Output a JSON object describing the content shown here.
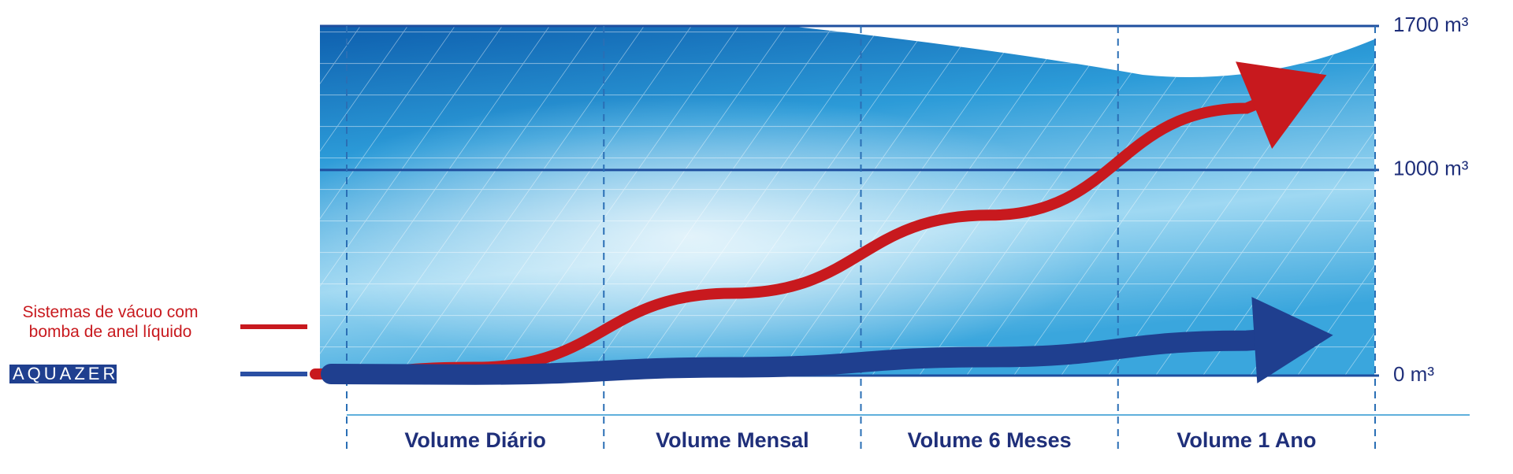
{
  "chart_data": {
    "type": "line",
    "categories": [
      "Volume Diário",
      "Volume Mensal",
      "Volume 6 Meses",
      "Volume 1 Ano"
    ],
    "series": [
      {
        "name": "Sistemas de vácuo com bomba de anel líquido",
        "color": "#c8191e",
        "values": [
          40,
          400,
          780,
          1300
        ]
      },
      {
        "name": "AQUAZERO®",
        "color": "#1f3f8f",
        "values": [
          5,
          40,
          90,
          170
        ]
      }
    ],
    "ylim": [
      0,
      1700
    ],
    "yticks": [
      {
        "value": 0,
        "label": "0 m³"
      },
      {
        "value": 1000,
        "label": "1000 m³"
      },
      {
        "value": 1700,
        "label": "1700 m³"
      }
    ],
    "grid": true
  }
}
